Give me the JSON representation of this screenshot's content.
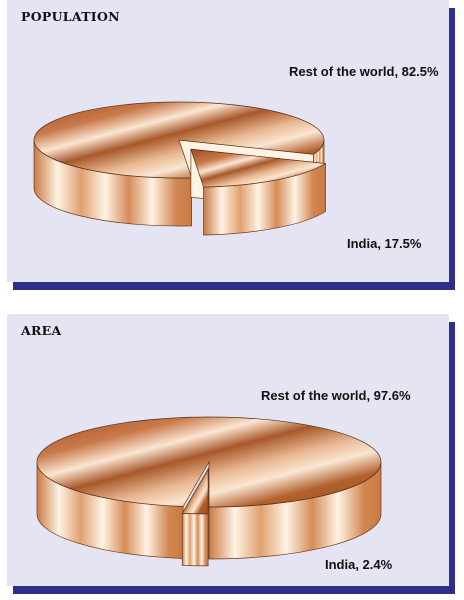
{
  "chart_data": [
    {
      "type": "pie",
      "title": "POPULATION",
      "slices": [
        {
          "label": "Rest of the world",
          "value": 82.5,
          "text": "Rest of the world, 82.5%"
        },
        {
          "label": "India",
          "value": 17.5,
          "text": "India, 17.5%"
        }
      ],
      "exploded": "India",
      "style": "3d"
    },
    {
      "type": "pie",
      "title": "AREA",
      "slices": [
        {
          "label": "Rest of the world",
          "value": 97.6,
          "text": "Rest of the world, 97.6%"
        },
        {
          "label": "India",
          "value": 2.4,
          "text": "India, 2.4%"
        }
      ],
      "exploded": "India",
      "style": "3d"
    }
  ],
  "colors": {
    "panel_background": "#e4e4f2",
    "panel_shadow": "#2c2f8c",
    "top_dark": "#9a4c22",
    "top_light": "#fbe6d2",
    "side_dark": "#c87a44",
    "side_light": "#fff3e4"
  }
}
